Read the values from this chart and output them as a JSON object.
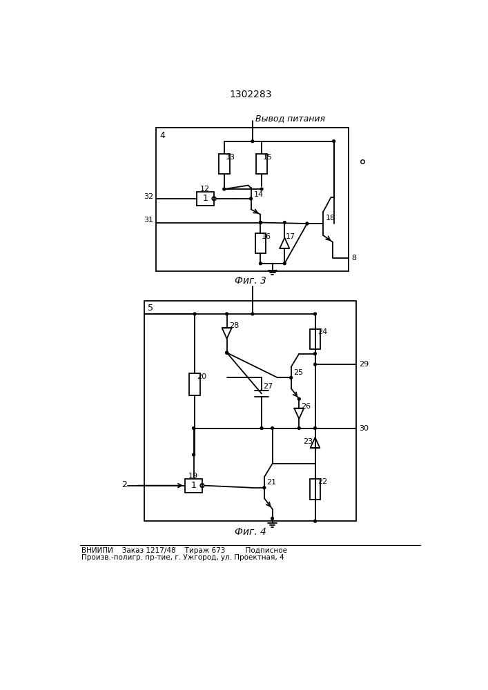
{
  "title": "1302283",
  "caption3": "Фиг. 3",
  "caption4": "Фиг. 4",
  "power_label": "Вывод питания",
  "bottom_text1": "ВНИИПИ    Заказ 1217/48    Тираж 673         Подписное",
  "bottom_text2": "Произв.-полигр. пр-тие, г. Ужгород, ул. Проектная, 4",
  "line_color": "#000000",
  "bg_color": "#ffffff"
}
